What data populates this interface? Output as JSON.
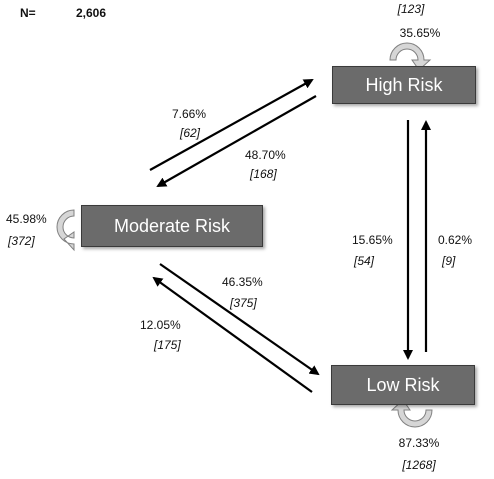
{
  "total": {
    "label": "N=",
    "value": "2,606"
  },
  "nodes": {
    "high": {
      "label": "High Risk"
    },
    "moderate": {
      "label": "Moderate Risk"
    },
    "low": {
      "label": "Low Risk"
    }
  },
  "self_loops": {
    "high": {
      "percent": "35.65%",
      "count": "[123]"
    },
    "moderate": {
      "percent": "45.98%",
      "count": "[372]"
    },
    "low": {
      "percent": "87.33%",
      "count": "[1268]"
    }
  },
  "transitions": {
    "moderate_to_high": {
      "percent": "7.66%",
      "count": "[62]"
    },
    "high_to_moderate": {
      "percent": "48.70%",
      "count": "[168]"
    },
    "high_to_low": {
      "percent": "15.65%",
      "count": "[54]"
    },
    "low_to_high": {
      "percent": "0.62%",
      "count": "[9]"
    },
    "moderate_to_low": {
      "percent": "46.35%",
      "count": "[375]"
    },
    "low_to_moderate": {
      "percent": "12.05%",
      "count": "[175]"
    }
  },
  "colors": {
    "box_fill": "#6b6b6b",
    "box_text": "#ffffff",
    "arrow": "#000000",
    "loop_fill": "#d6d6d6",
    "loop_stroke": "#808080"
  }
}
